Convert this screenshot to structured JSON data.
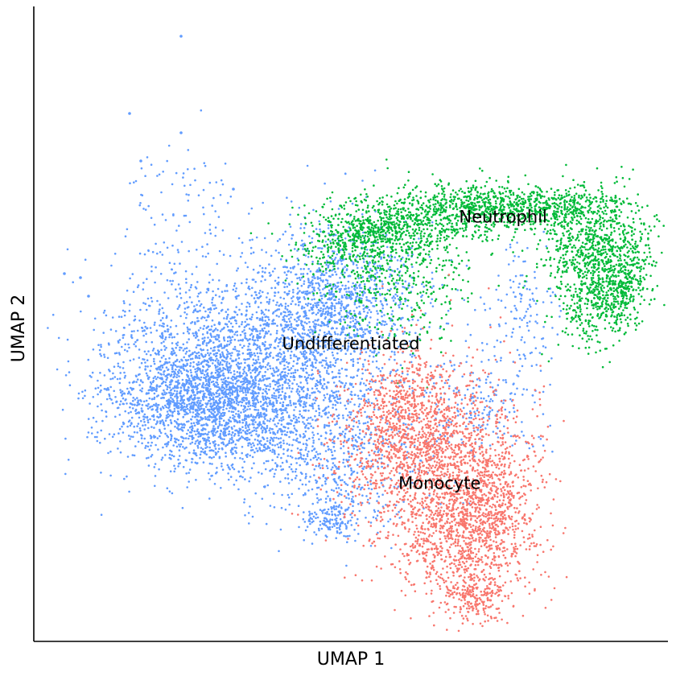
{
  "chart_data": {
    "type": "scatter",
    "title": "",
    "xlabel": "UMAP 1",
    "ylabel": "UMAP 2",
    "xlim": [
      0,
      100
    ],
    "ylim": [
      0,
      100
    ],
    "grid": false,
    "legend": "none",
    "ticks": "none",
    "series": [
      {
        "name": "Undifferentiated",
        "color": "#619CFF",
        "label_point": [
          50,
          46
        ]
      },
      {
        "name": "Neutrophil",
        "color": "#00BA38",
        "label_point": [
          74,
          66
        ]
      },
      {
        "name": "Monocyte",
        "color": "#F8766D",
        "label_point": [
          64,
          24
        ]
      }
    ]
  }
}
